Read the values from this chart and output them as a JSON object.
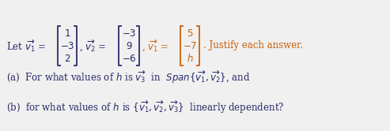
{
  "bg_color": "#f0f0f0",
  "blue": "#2a2a6a",
  "orange": "#c8600a",
  "figsize": [
    4.93,
    1.66
  ],
  "dpi": 100,
  "fs_text": 8.5,
  "fs_math": 8.5,
  "fs_span": 9.5,
  "v1": [
    "1",
    "-3",
    "2"
  ],
  "v2": [
    "-3",
    "9",
    "-6"
  ],
  "v3": [
    "5",
    "-7",
    "h"
  ]
}
